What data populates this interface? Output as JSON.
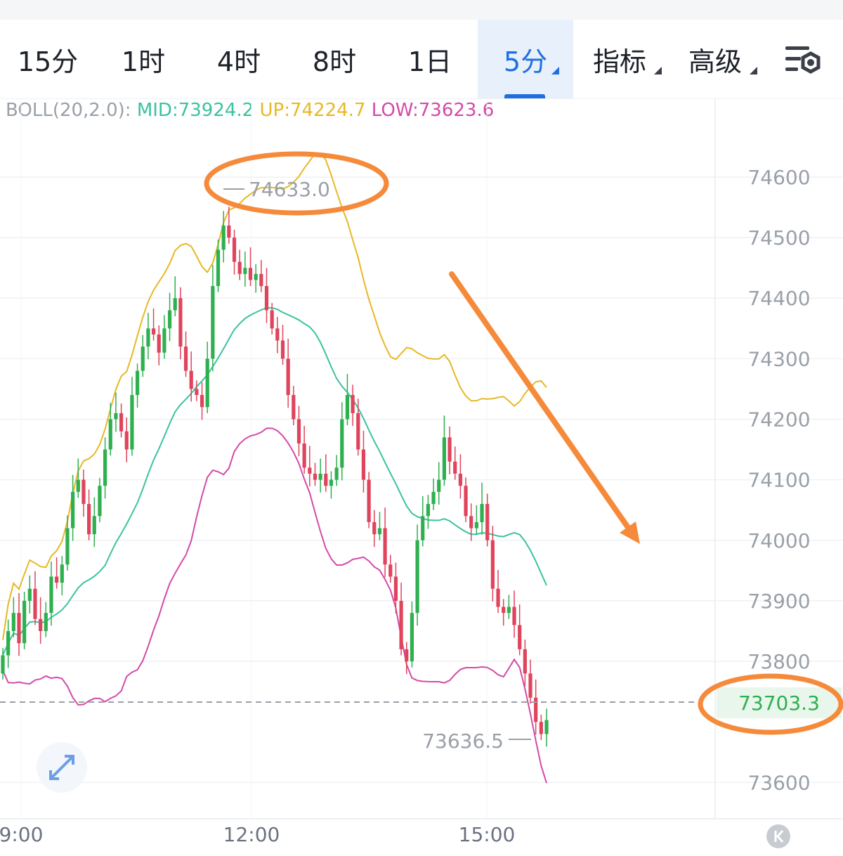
{
  "tabs": [
    {
      "label": "15分"
    },
    {
      "label": "1时"
    },
    {
      "label": "4时"
    },
    {
      "label": "8时"
    },
    {
      "label": "1日"
    },
    {
      "label": "5分",
      "active": true
    },
    {
      "label": "指标"
    },
    {
      "label": "高级"
    }
  ],
  "icons": {
    "settings": "chart-settings-icon",
    "expand": "expand-icon",
    "back": "back-to-latest-icon"
  },
  "boll": {
    "prefix": "BOLL(20,2.0):",
    "mid": "MID:73924.2",
    "up": "UP:74224.7",
    "low": "LOW:73623.6"
  },
  "colors": {
    "up_candle": "#2eb04f",
    "down_candle": "#e0445c",
    "mid_line": "#3cc2a0",
    "up_line": "#e8b825",
    "low_line": "#d44aa8",
    "annotation": "#f58a3a",
    "accent": "#1f6fe0"
  },
  "chart_data": {
    "type": "candlestick",
    "indicator": "BOLL(20,2.0)",
    "y_ticks": [
      "74600",
      "74500",
      "74400",
      "74300",
      "74200",
      "74100",
      "74000",
      "73900",
      "73800",
      "73600"
    ],
    "ylim": [
      73540,
      74730
    ],
    "x_ticks": [
      "9:00",
      "12:00",
      "15:00"
    ],
    "high_label": "74633.0",
    "low_label": "73636.5",
    "current_price": "73703.3",
    "current_value": 73703.3,
    "high_value": 74633.0,
    "low_value": 73636.5
  }
}
